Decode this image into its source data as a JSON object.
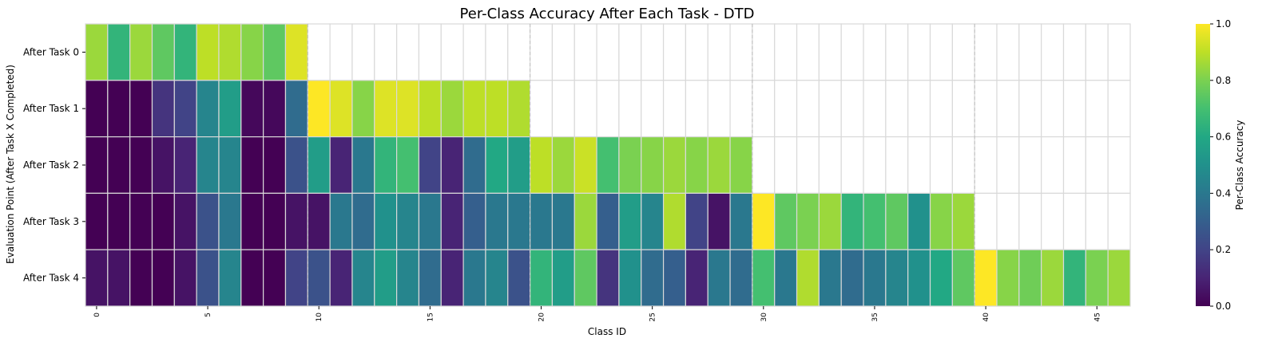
{
  "chart_data": {
    "type": "heatmap",
    "title": "Per-Class Accuracy After Each Task - DTD",
    "xlabel": "Class ID",
    "ylabel": "Evaluation Point (After Task X Completed)",
    "colorbar_label": "Per-Class Accuracy",
    "colormap": "viridis",
    "vmin": 0.0,
    "vmax": 1.0,
    "colorbar_ticks": [
      "0.0",
      "0.2",
      "0.4",
      "0.6",
      "0.8",
      "1.0"
    ],
    "rows": [
      "After Task 0",
      "After Task 1",
      "After Task 2",
      "After Task 3",
      "After Task 4"
    ],
    "n_classes": 47,
    "x_ticks": [
      "0",
      "5",
      "10",
      "15",
      "20",
      "25",
      "30",
      "35",
      "40",
      "45"
    ],
    "task_boundaries": [
      10,
      20,
      30,
      40
    ],
    "values": [
      [
        0.85,
        0.65,
        0.85,
        0.75,
        0.65,
        0.9,
        0.88,
        0.82,
        0.75,
        0.95,
        null,
        null,
        null,
        null,
        null,
        null,
        null,
        null,
        null,
        null,
        null,
        null,
        null,
        null,
        null,
        null,
        null,
        null,
        null,
        null,
        null,
        null,
        null,
        null,
        null,
        null,
        null,
        null,
        null,
        null,
        null,
        null,
        null,
        null,
        null,
        null,
        null
      ],
      [
        0.0,
        0.0,
        0.0,
        0.15,
        0.2,
        0.45,
        0.55,
        0.02,
        0.02,
        0.35,
        1.0,
        0.95,
        0.82,
        0.95,
        0.95,
        0.9,
        0.85,
        0.9,
        0.9,
        0.88,
        null,
        null,
        null,
        null,
        null,
        null,
        null,
        null,
        null,
        null,
        null,
        null,
        null,
        null,
        null,
        null,
        null,
        null,
        null,
        null,
        null,
        null,
        null,
        null,
        null,
        null,
        null
      ],
      [
        0.0,
        0.0,
        0.0,
        0.05,
        0.1,
        0.45,
        0.45,
        0.0,
        0.0,
        0.25,
        0.55,
        0.1,
        0.4,
        0.65,
        0.7,
        0.2,
        0.1,
        0.35,
        0.6,
        0.55,
        0.9,
        0.85,
        0.92,
        0.7,
        0.8,
        0.82,
        0.85,
        0.82,
        0.85,
        0.82,
        null,
        null,
        null,
        null,
        null,
        null,
        null,
        null,
        null,
        null,
        null,
        null,
        null,
        null,
        null,
        null,
        null
      ],
      [
        0.0,
        0.0,
        0.0,
        0.0,
        0.05,
        0.25,
        0.4,
        0.0,
        0.0,
        0.05,
        0.05,
        0.4,
        0.35,
        0.5,
        0.45,
        0.4,
        0.1,
        0.3,
        0.4,
        0.4,
        0.4,
        0.4,
        0.85,
        0.3,
        0.55,
        0.45,
        0.88,
        0.2,
        0.05,
        0.4,
        1.0,
        0.75,
        0.8,
        0.85,
        0.65,
        0.7,
        0.75,
        0.5,
        0.82,
        0.85,
        null,
        null,
        null,
        null,
        null,
        null,
        null
      ],
      [
        0.05,
        0.05,
        0.0,
        0.0,
        0.05,
        0.25,
        0.45,
        0.0,
        0.0,
        0.2,
        0.25,
        0.1,
        0.45,
        0.55,
        0.45,
        0.35,
        0.1,
        0.4,
        0.45,
        0.25,
        0.65,
        0.55,
        0.75,
        0.15,
        0.5,
        0.35,
        0.3,
        0.1,
        0.4,
        0.35,
        0.7,
        0.4,
        0.88,
        0.4,
        0.35,
        0.4,
        0.45,
        0.5,
        0.6,
        0.75,
        1.0,
        0.82,
        0.78,
        0.85,
        0.65,
        0.8,
        0.85
      ]
    ]
  }
}
